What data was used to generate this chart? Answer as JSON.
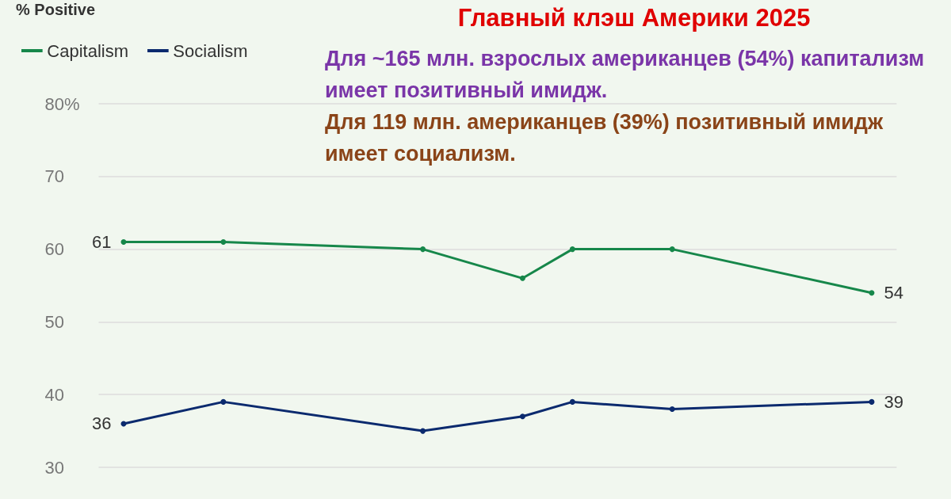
{
  "chart_data": {
    "type": "line",
    "title": "Главный клэш Америки 2025",
    "ylabel": "% Positive",
    "annotations": [
      "Для ~165 млн. взрослых американцев (54%) капитализм имеет позитивный имидж.",
      "Для 119 млн. американцев (39%) позитивный имидж имеет социализм."
    ],
    "categories": [
      null,
      null,
      null,
      null,
      null,
      null,
      null,
      null,
      null,
      null,
      null,
      null,
      null,
      null,
      null,
      null
    ],
    "series": [
      {
        "name": "Capitalism",
        "color": "#16874a",
        "values": [
          61,
          null,
          61,
          null,
          null,
          null,
          60,
          null,
          56,
          60,
          null,
          60,
          null,
          null,
          null,
          54
        ],
        "value_labels": [
          "61",
          null,
          null,
          null,
          null,
          null,
          null,
          null,
          null,
          null,
          null,
          null,
          null,
          null,
          null,
          "54"
        ]
      },
      {
        "name": "Socialism",
        "color": "#0b2a6e",
        "values": [
          36,
          null,
          39,
          null,
          null,
          null,
          35,
          null,
          37,
          39,
          null,
          38,
          null,
          null,
          null,
          39
        ],
        "value_labels": [
          "36",
          null,
          null,
          null,
          null,
          null,
          null,
          null,
          null,
          null,
          null,
          null,
          null,
          null,
          null,
          "39"
        ]
      }
    ],
    "ylim": [
      30,
      80
    ],
    "yticks": [
      30,
      40,
      50,
      60,
      70,
      {
        "value": 80,
        "label": "80%"
      }
    ],
    "grid": "y",
    "legend": "top left",
    "marker": "circle",
    "line_style": "solid",
    "tick_labels": "y"
  }
}
